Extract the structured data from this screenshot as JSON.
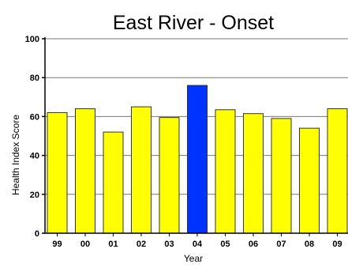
{
  "chart_data": {
    "type": "bar",
    "title": "East River - Onset",
    "xlabel": "Year",
    "ylabel": "Health Index Score",
    "categories": [
      "99",
      "00",
      "01",
      "02",
      "03",
      "04",
      "05",
      "06",
      "07",
      "08",
      "09"
    ],
    "values": [
      62,
      64,
      52,
      65,
      59.5,
      76,
      63.5,
      61.5,
      59,
      54,
      64
    ],
    "highlight_index": 5,
    "ylim": [
      0,
      100
    ],
    "yticks": [
      0,
      20,
      40,
      60,
      80,
      100
    ],
    "grid": true,
    "colors": {
      "bar_fill": "#ffff00",
      "highlight_fill": "#0033ff",
      "bar_stroke": "#333333",
      "grid": "#777777",
      "axis": "#000000"
    }
  }
}
